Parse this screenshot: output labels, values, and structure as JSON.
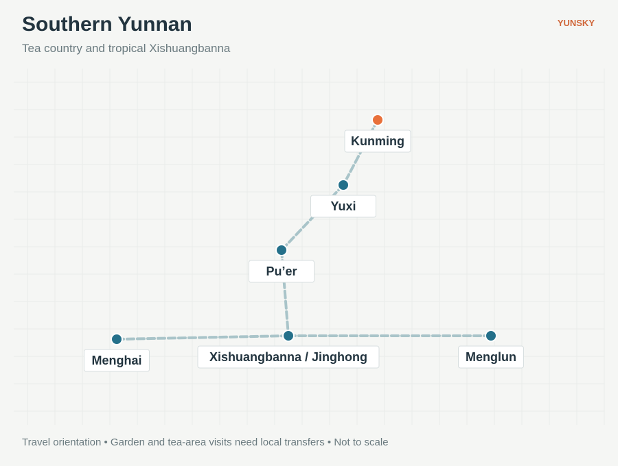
{
  "header": {
    "title": "Southern Yunnan",
    "subtitle": "Tea country and tropical Xishuangbanna",
    "brand": "YUNSKY"
  },
  "nodes": [
    {
      "label": "Kunming"
    },
    {
      "label": "Yuxi"
    },
    {
      "label": "Pu’er"
    },
    {
      "label": "Xishuangbanna / Jinghong"
    },
    {
      "label": "Menghai"
    },
    {
      "label": "Menglun"
    }
  ],
  "footer": {
    "note": "Travel orientation • Garden and tea-area visits need local transfers • Not to scale"
  }
}
